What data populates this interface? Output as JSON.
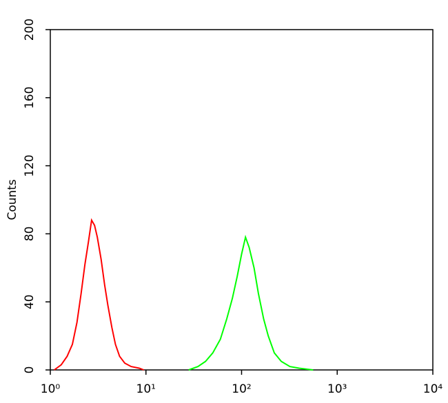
{
  "chart_data": {
    "type": "line",
    "xscale": "log",
    "ylabel": "Counts",
    "xlim": [
      1,
      10000
    ],
    "xticks": [
      {
        "value": 1,
        "label": "10⁰"
      },
      {
        "value": 10,
        "label": "10¹"
      },
      {
        "value": 100,
        "label": "10²"
      },
      {
        "value": 1000,
        "label": "10³"
      },
      {
        "value": 10000,
        "label": "10⁴"
      }
    ],
    "ylim": [
      0,
      200
    ],
    "yticks": [
      0,
      40,
      80,
      120,
      160,
      200
    ],
    "series": [
      {
        "color": "#ff0000",
        "x": [
          1.1,
          1.3,
          1.5,
          1.7,
          1.9,
          2.1,
          2.3,
          2.5,
          2.7,
          2.9,
          3.1,
          3.4,
          3.7,
          4.0,
          4.4,
          4.8,
          5.3,
          6.0,
          7.0,
          8.5,
          9.5
        ],
        "values": [
          0,
          3,
          8,
          15,
          28,
          45,
          62,
          75,
          88,
          85,
          78,
          65,
          50,
          38,
          25,
          15,
          8,
          4,
          2,
          1,
          0
        ]
      },
      {
        "color": "#00ff00",
        "x": [
          28,
          35,
          42,
          50,
          60,
          70,
          80,
          90,
          100,
          110,
          120,
          135,
          150,
          170,
          190,
          220,
          260,
          320,
          400,
          560
        ],
        "values": [
          0,
          2,
          5,
          10,
          18,
          30,
          42,
          55,
          68,
          78,
          72,
          60,
          45,
          30,
          20,
          10,
          5,
          2,
          1,
          0
        ]
      }
    ]
  }
}
